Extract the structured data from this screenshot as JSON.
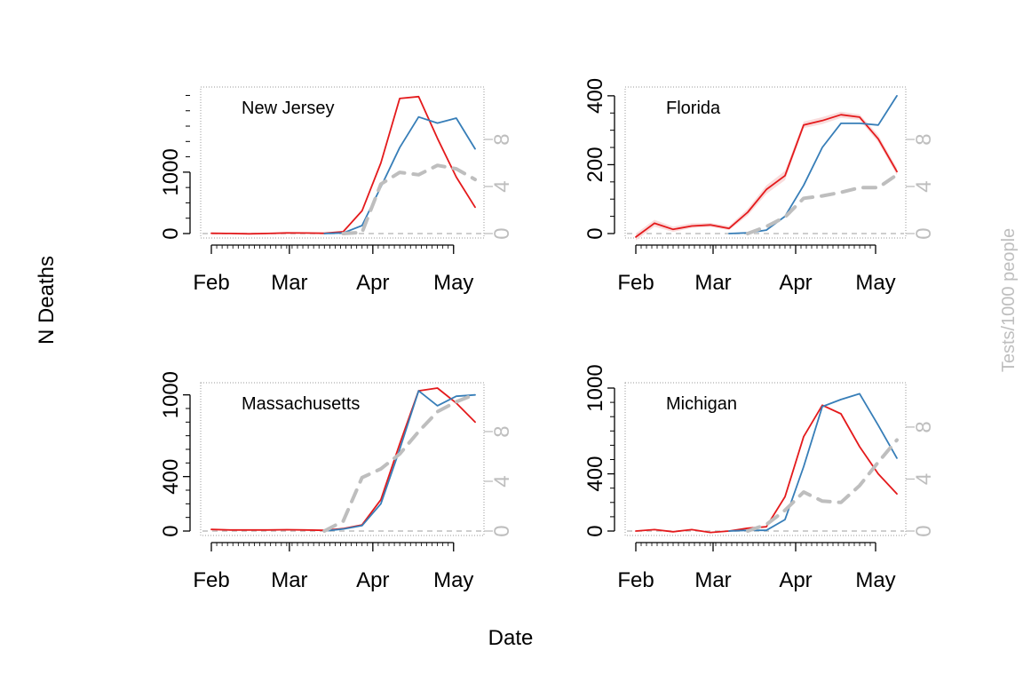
{
  "figure": {
    "xlabel": "Date",
    "ylabel": "N Deaths",
    "ylabel_right": "Tests/1000 people"
  },
  "chart_data": [
    {
      "type": "line",
      "title": "New Jersey",
      "x": [
        "2020-02-01",
        "2020-02-08",
        "2020-02-15",
        "2020-02-22",
        "2020-02-29",
        "2020-03-07",
        "2020-03-14",
        "2020-03-21",
        "2020-03-28",
        "2020-04-04",
        "2020-04-11",
        "2020-04-18",
        "2020-04-25",
        "2020-05-02",
        "2020-05-09"
      ],
      "xticks": [
        "Feb",
        "Mar",
        "Apr",
        "May"
      ],
      "ylim": [
        0,
        2300
      ],
      "yticks": [
        0,
        1000
      ],
      "y2lim": [
        0,
        12
      ],
      "y2ticks": [
        0,
        4,
        8
      ],
      "series": [
        {
          "role": "observed",
          "color": "#e41a1c",
          "values": [
            5,
            2,
            -5,
            2,
            10,
            8,
            5,
            30,
            370,
            1150,
            2200,
            2230,
            1550,
            920,
            430
          ]
        },
        {
          "role": "model",
          "color": "#377eb8",
          "values": [
            null,
            null,
            null,
            null,
            null,
            null,
            0,
            10,
            130,
            760,
            1400,
            1900,
            1800,
            1880,
            1380
          ]
        },
        {
          "role": "tests",
          "axis": "right",
          "color": "#bebebe",
          "values": [
            null,
            null,
            null,
            null,
            null,
            null,
            null,
            0,
            0.1,
            4.2,
            5.2,
            5.0,
            5.8,
            5.5,
            4.6
          ]
        }
      ],
      "reference_line": {
        "axis": "right",
        "value": 0,
        "color": "#bebebe"
      }
    },
    {
      "type": "line",
      "title": "Florida",
      "x": [
        "2020-02-01",
        "2020-02-08",
        "2020-02-15",
        "2020-02-22",
        "2020-02-29",
        "2020-03-07",
        "2020-03-14",
        "2020-03-21",
        "2020-03-28",
        "2020-04-04",
        "2020-04-11",
        "2020-04-18",
        "2020-04-25",
        "2020-05-02",
        "2020-05-09"
      ],
      "xticks": [
        "Feb",
        "Mar",
        "Apr",
        "May"
      ],
      "ylim": [
        0,
        410
      ],
      "yticks": [
        0,
        200,
        400
      ],
      "y2lim": [
        0,
        12
      ],
      "y2ticks": [
        0,
        4,
        8
      ],
      "series": [
        {
          "role": "observed",
          "color": "#e41a1c",
          "band_color": "#f7d3d3",
          "values": [
            -10,
            30,
            12,
            22,
            25,
            15,
            62,
            128,
            168,
            315,
            328,
            345,
            338,
            275,
            180
          ],
          "lower": [
            -20,
            20,
            5,
            16,
            19,
            10,
            52,
            115,
            155,
            306,
            318,
            336,
            330,
            265,
            170
          ],
          "upper": [
            0,
            40,
            20,
            30,
            31,
            22,
            72,
            140,
            182,
            325,
            338,
            354,
            346,
            286,
            190
          ]
        },
        {
          "role": "model",
          "color": "#377eb8",
          "values": [
            null,
            null,
            null,
            null,
            null,
            0,
            2,
            10,
            50,
            140,
            250,
            320,
            320,
            315,
            400
          ]
        },
        {
          "role": "tests",
          "axis": "right",
          "color": "#bebebe",
          "values": [
            null,
            null,
            null,
            null,
            null,
            null,
            0,
            0.6,
            1.4,
            3.0,
            3.2,
            3.5,
            3.9,
            3.9,
            5.0
          ]
        }
      ],
      "reference_line": {
        "axis": "right",
        "value": 0,
        "color": "#bebebe"
      }
    },
    {
      "type": "line",
      "title": "Massachusetts",
      "x": [
        "2020-02-01",
        "2020-02-08",
        "2020-02-15",
        "2020-02-22",
        "2020-02-29",
        "2020-03-07",
        "2020-03-14",
        "2020-03-21",
        "2020-03-28",
        "2020-04-04",
        "2020-04-11",
        "2020-04-18",
        "2020-04-25",
        "2020-05-02",
        "2020-05-09"
      ],
      "xticks": [
        "Feb",
        "Mar",
        "Apr",
        "May"
      ],
      "ylim": [
        0,
        1050
      ],
      "yticks": [
        0,
        400,
        1000
      ],
      "y2lim": [
        0,
        11.5
      ],
      "y2ticks": [
        0,
        4,
        8
      ],
      "series": [
        {
          "role": "observed",
          "color": "#e41a1c",
          "values": [
            12,
            8,
            8,
            8,
            10,
            8,
            5,
            18,
            45,
            230,
            640,
            1030,
            1050,
            940,
            800
          ]
        },
        {
          "role": "model",
          "color": "#377eb8",
          "values": [
            null,
            null,
            null,
            null,
            null,
            null,
            0,
            15,
            40,
            200,
            600,
            1030,
            920,
            990,
            1000
          ]
        },
        {
          "role": "tests",
          "axis": "right",
          "color": "#bebebe",
          "values": [
            null,
            null,
            null,
            null,
            null,
            null,
            0,
            0.8,
            4.3,
            5.0,
            6.2,
            8.0,
            9.6,
            10.4,
            11.0
          ]
        }
      ],
      "reference_line": {
        "axis": "right",
        "value": 0,
        "color": "#bebebe"
      }
    },
    {
      "type": "line",
      "title": "Michigan",
      "x": [
        "2020-02-01",
        "2020-02-08",
        "2020-02-15",
        "2020-02-22",
        "2020-02-29",
        "2020-03-07",
        "2020-03-14",
        "2020-03-21",
        "2020-03-28",
        "2020-04-04",
        "2020-04-11",
        "2020-04-18",
        "2020-04-25",
        "2020-05-02",
        "2020-05-09"
      ],
      "xticks": [
        "Feb",
        "Mar",
        "Apr",
        "May"
      ],
      "ylim": [
        0,
        1000
      ],
      "yticks": [
        0,
        400,
        1000
      ],
      "y2lim": [
        0,
        11
      ],
      "y2ticks": [
        0,
        4,
        8
      ],
      "series": [
        {
          "role": "observed",
          "color": "#e41a1c",
          "values": [
            0,
            10,
            -5,
            10,
            -10,
            0,
            20,
            30,
            240,
            660,
            880,
            820,
            590,
            400,
            260
          ]
        },
        {
          "role": "model",
          "color": "#377eb8",
          "values": [
            null,
            null,
            null,
            null,
            null,
            0,
            5,
            5,
            80,
            450,
            870,
            920,
            960,
            740,
            510
          ]
        },
        {
          "role": "tests",
          "axis": "right",
          "color": "#bebebe",
          "values": [
            null,
            null,
            null,
            null,
            null,
            null,
            0,
            0.5,
            1.6,
            3.0,
            2.3,
            2.2,
            3.5,
            5.3,
            7.0
          ]
        }
      ],
      "reference_line": {
        "axis": "right",
        "value": 0,
        "color": "#bebebe"
      }
    }
  ]
}
